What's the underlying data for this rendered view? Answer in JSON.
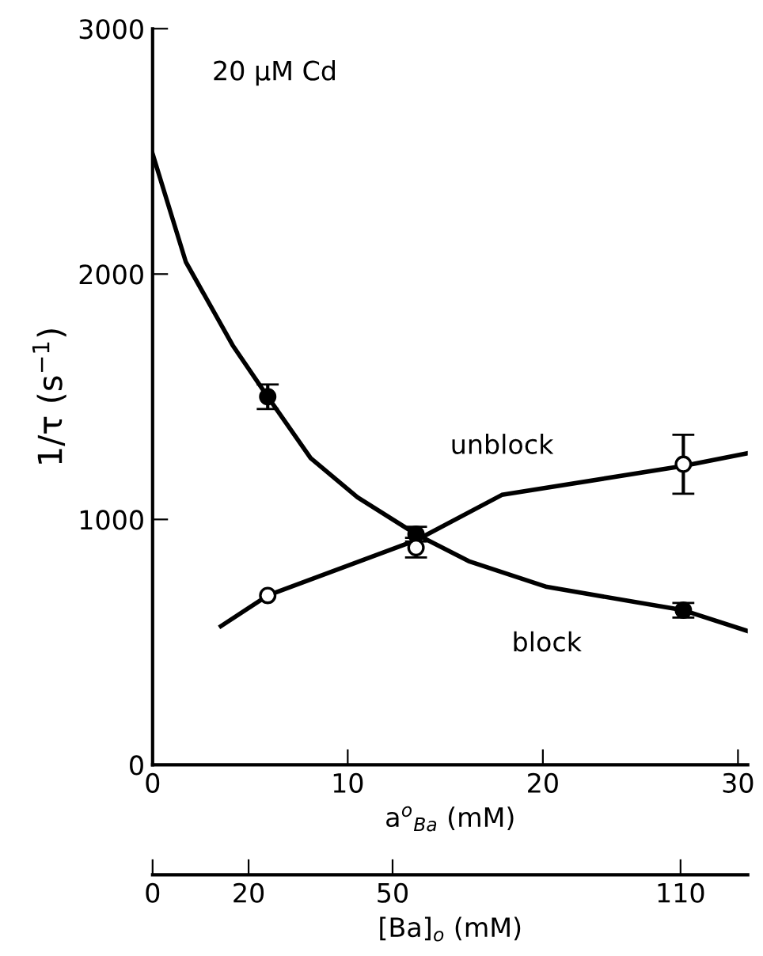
{
  "chart_data": {
    "type": "scatter",
    "xlabel": "a$^{o}$$_{Ba}$ (mM)",
    "ylabel": "1/τ (s$^{−1}$)",
    "x2label": "[Ba]$_{o}$ (mM)",
    "annotations": [
      "20 μM Cd"
    ],
    "xlim": [
      0,
      30.5
    ],
    "xticks": [
      0,
      10,
      20,
      30
    ],
    "ylim": [
      0,
      3000
    ],
    "yticks": [
      0,
      1000,
      2000,
      3000
    ],
    "x2lim": [
      0,
      124
    ],
    "x2ticks": [
      0,
      20,
      50,
      110
    ],
    "grid": false,
    "legend": false,
    "series": [
      {
        "type": "line",
        "name": "block",
        "color": "#000000",
        "x": [
          0,
          1.7,
          4.1,
          5.9,
          8.1,
          10.5,
          13.5,
          16.2,
          20.2,
          27.2,
          30.5
        ],
        "values": [
          2490,
          2050,
          1710,
          1500,
          1250,
          1090,
          940,
          830,
          725,
          630,
          545
        ]
      },
      {
        "type": "line",
        "name": "unblock",
        "color": "#000000",
        "x": [
          3.5,
          5.9,
          13.5,
          17.9,
          27.2,
          30.5
        ],
        "values": [
          565,
          690,
          915,
          1100,
          1218,
          1270
        ]
      },
      {
        "marker": "circle",
        "color": "#000000",
        "x": [
          5.9,
          13.5,
          27.2
        ],
        "values": [
          1500,
          940,
          630
        ],
        "errors": [
          50,
          30,
          30
        ]
      },
      {
        "marker": "circle",
        "color": "#ffffff",
        "x": [
          5.9,
          13.5,
          27.2
        ],
        "values": [
          690,
          885,
          1225
        ],
        "errors": [
          null,
          40,
          120
        ]
      }
    ]
  }
}
